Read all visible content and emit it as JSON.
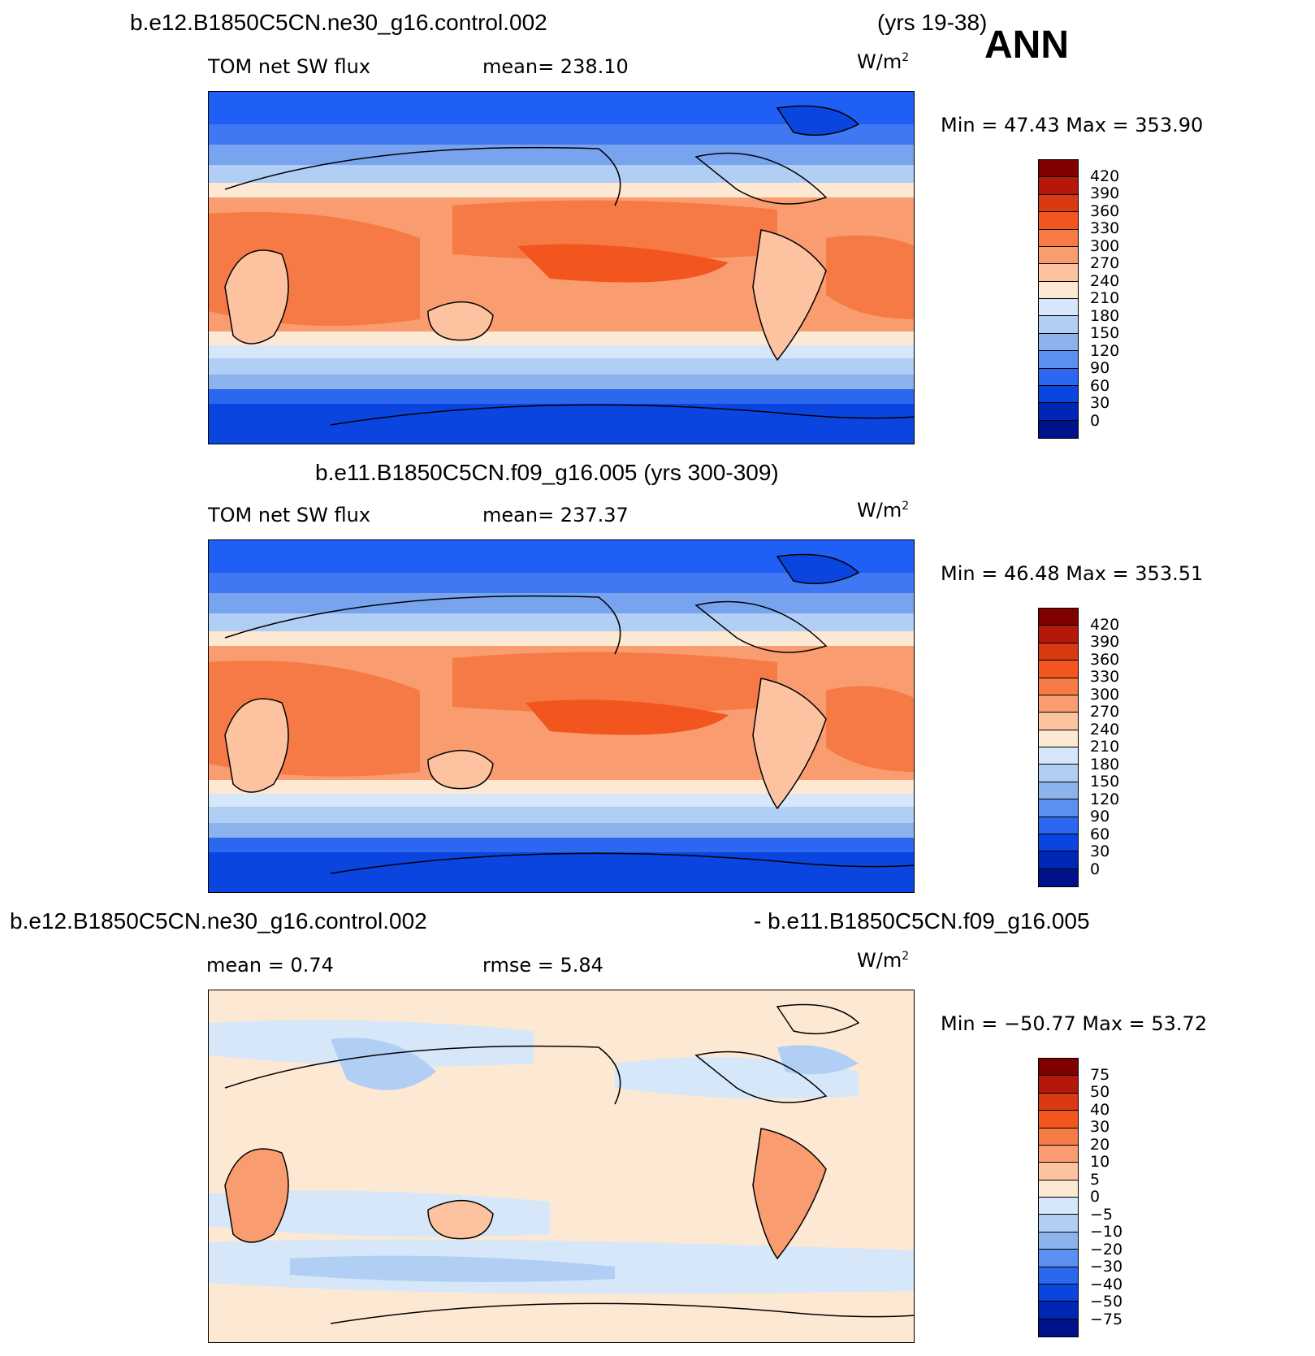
{
  "header": {
    "case1": "b.e12.B1850C5CN.ne30_g16.control.002",
    "years1": "(yrs 19-38)",
    "season": "ANN"
  },
  "panels": [
    {
      "id": "panel-top",
      "variable": "TOM net SW flux",
      "stat_left": "mean=  238.10",
      "unit": "W/m",
      "unit_exp": "2",
      "minmax": "Min =   47.43  Max =  353.90",
      "colorbar": {
        "labels": [
          "420",
          "390",
          "360",
          "330",
          "300",
          "270",
          "240",
          "210",
          "180",
          "150",
          "120",
          "90",
          "60",
          "30",
          "0"
        ],
        "colors": [
          "#800000",
          "#b5170a",
          "#d93a12",
          "#f2551e",
          "#f57a45",
          "#f99d70",
          "#fdc3a1",
          "#fde8d3",
          "#d5e7f9",
          "#b1cef4",
          "#8db3ee",
          "#5b8ff0",
          "#2c67ef",
          "#0a45e0",
          "#0026b6",
          "#00128a"
        ]
      }
    },
    {
      "id": "panel-middle",
      "title": "b.e11.B1850C5CN.f09_g16.005 (yrs 300-309)",
      "variable": "TOM net SW flux",
      "stat_left": "mean=  237.37",
      "unit": "W/m",
      "unit_exp": "2",
      "minmax": "Min =   46.48  Max =  353.51",
      "colorbar": {
        "labels": [
          "420",
          "390",
          "360",
          "330",
          "300",
          "270",
          "240",
          "210",
          "180",
          "150",
          "120",
          "90",
          "60",
          "30",
          "0"
        ],
        "colors": [
          "#800000",
          "#b5170a",
          "#d93a12",
          "#f2551e",
          "#f57a45",
          "#f99d70",
          "#fdc3a1",
          "#fde8d3",
          "#d5e7f9",
          "#b1cef4",
          "#8db3ee",
          "#5b8ff0",
          "#2c67ef",
          "#0a45e0",
          "#0026b6",
          "#00128a"
        ]
      }
    },
    {
      "id": "panel-bottom",
      "title_left": "b.e12.B1850C5CN.ne30_g16.control.002",
      "title_right": "- b.e11.B1850C5CN.f09_g16.005",
      "stat_left": "mean =    0.74",
      "stat_mid": "rmse =    5.84",
      "unit": "W/m",
      "unit_exp": "2",
      "minmax": "Min = −50.77  Max =   53.72",
      "colorbar": {
        "labels": [
          "75",
          "50",
          "40",
          "30",
          "20",
          "10",
          "5",
          "0",
          "−5",
          "−10",
          "−20",
          "−30",
          "−40",
          "−50",
          "−75"
        ],
        "colors": [
          "#800000",
          "#b5170a",
          "#d93a12",
          "#f2551e",
          "#f57a45",
          "#f99d70",
          "#fdc3a1",
          "#fde8d3",
          "#d5e7f9",
          "#b1cef4",
          "#8db3ee",
          "#5b8ff0",
          "#2c67ef",
          "#0a45e0",
          "#0026b6",
          "#00128a"
        ]
      }
    }
  ]
}
